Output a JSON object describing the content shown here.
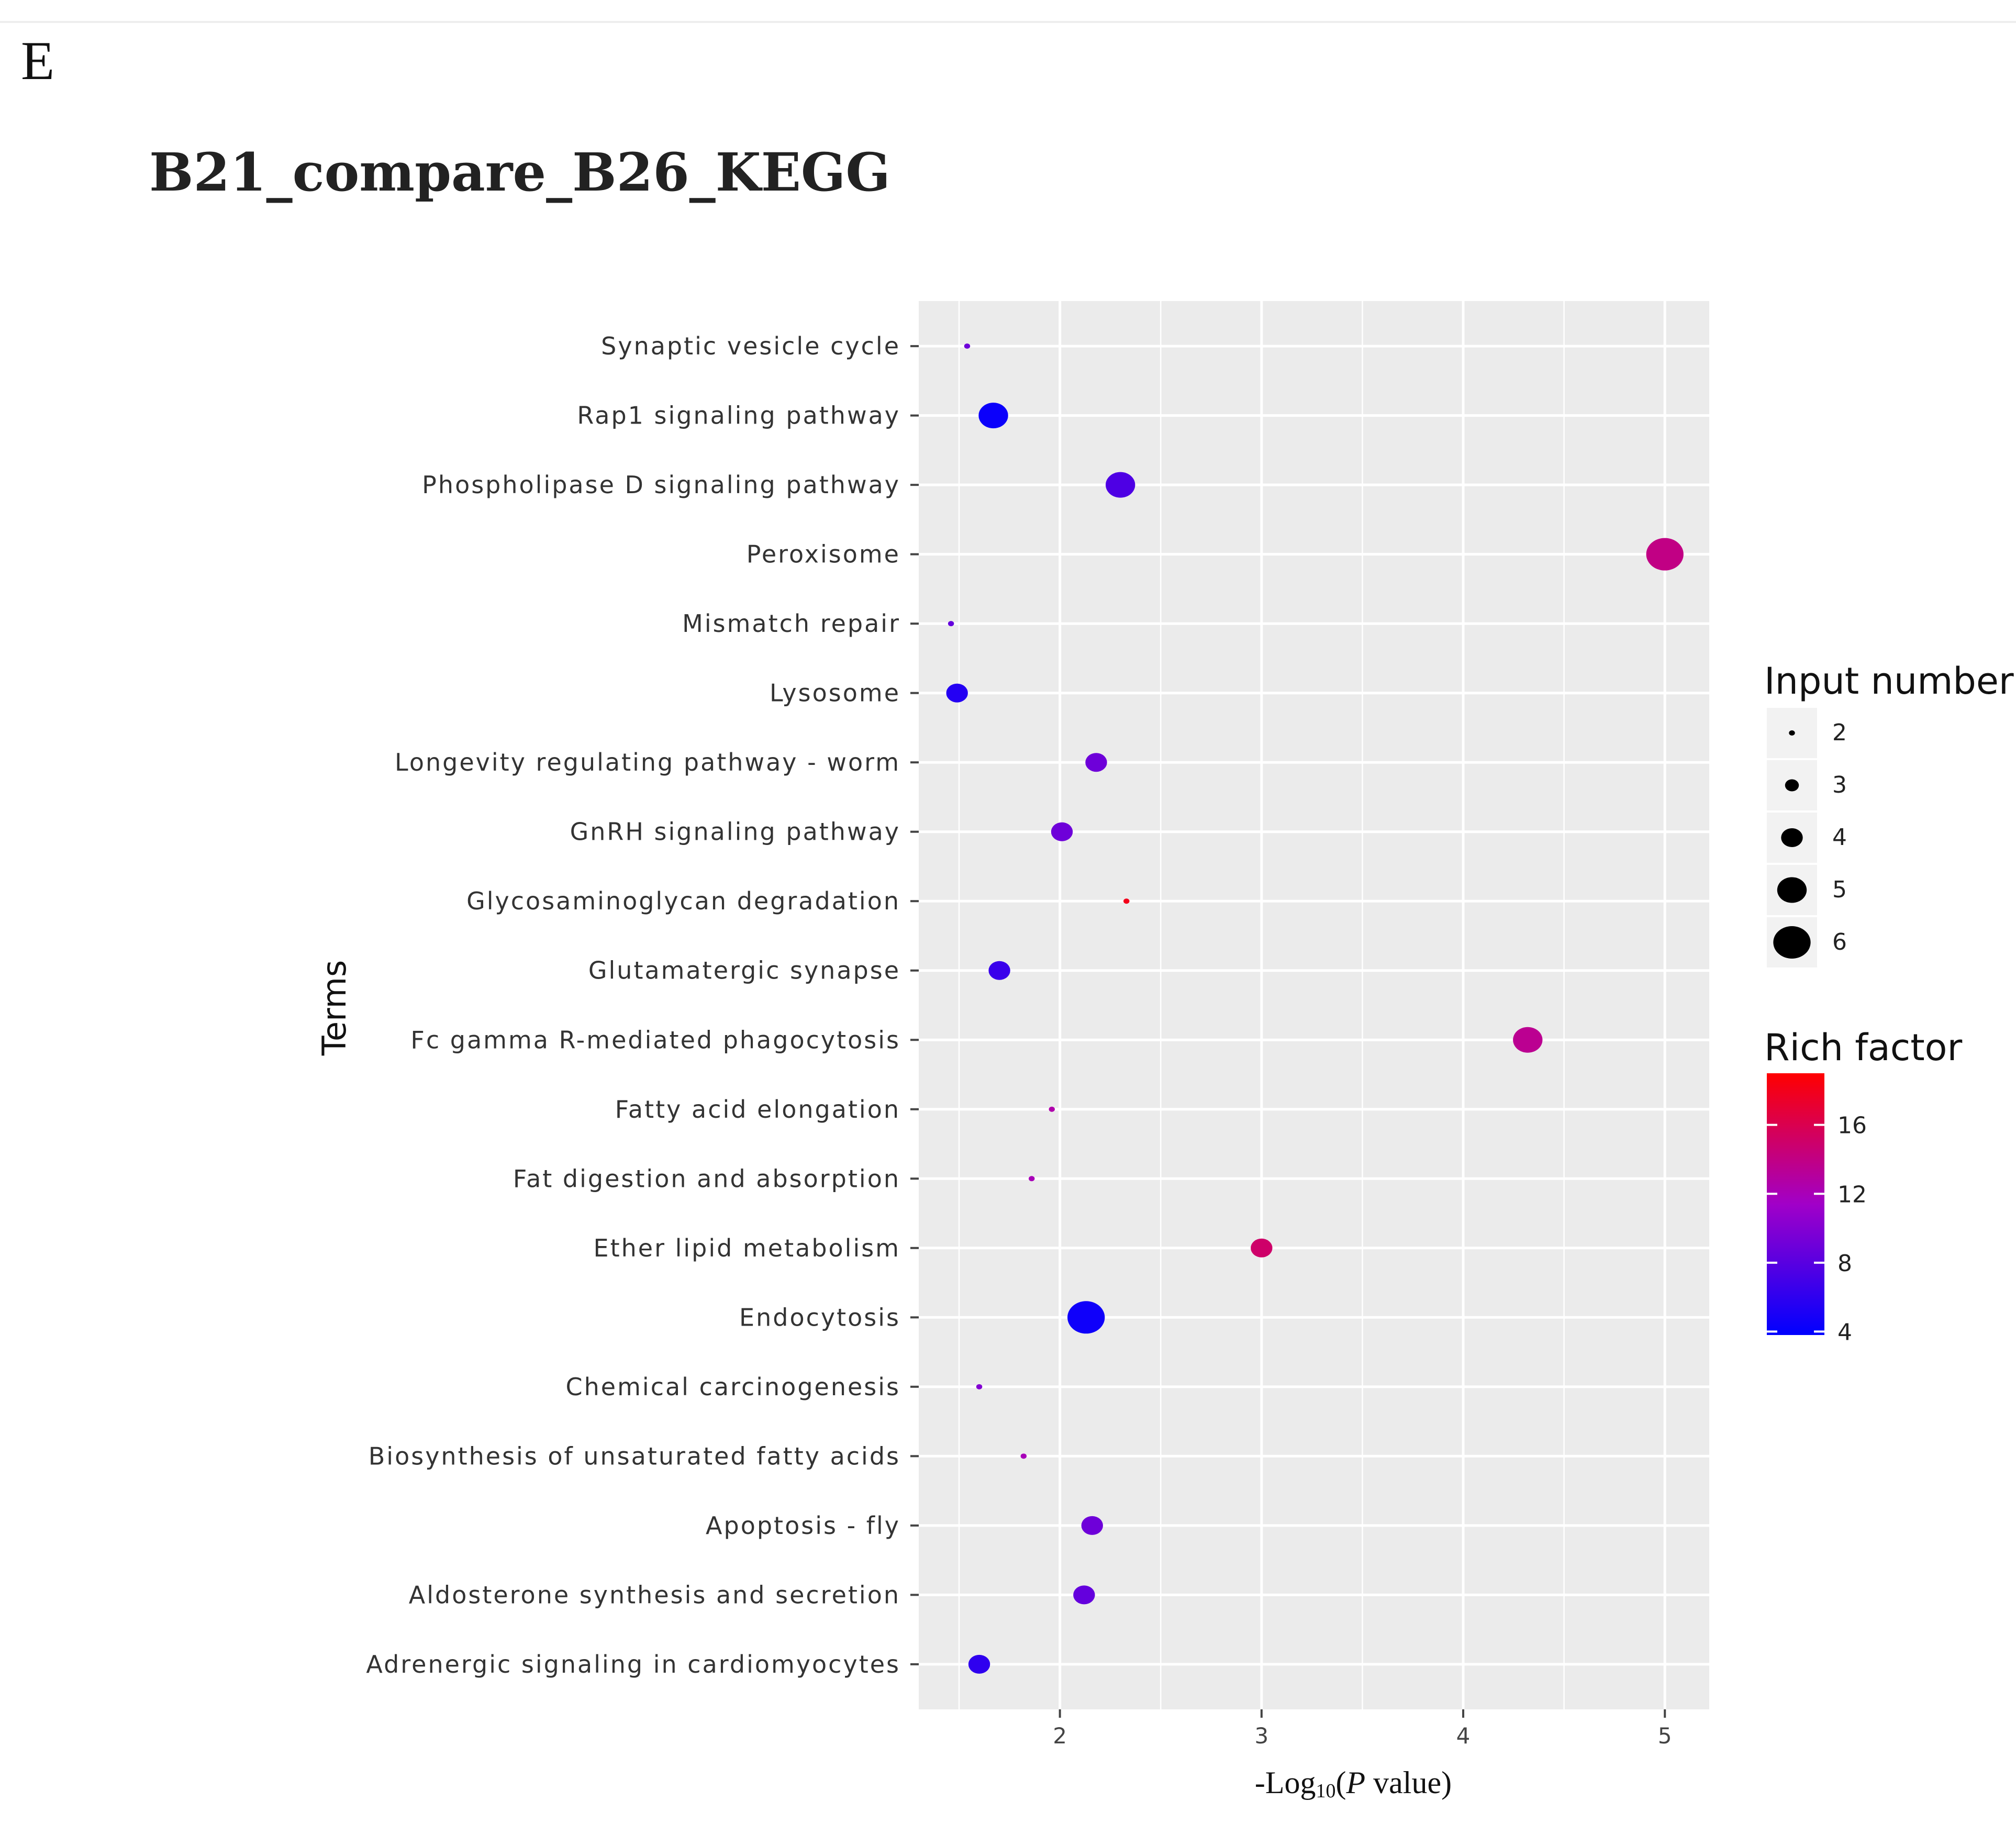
{
  "figure": {
    "panel_label": "E",
    "title": "B21_compare_B26_KEGG"
  },
  "chart_data": {
    "type": "scatter",
    "title": "B21_compare_B26_KEGG",
    "xlabel_parts": [
      "-Log",
      "10",
      "(",
      "P",
      " value)"
    ],
    "ylabel": "Terms",
    "xlim": [
      1.3,
      5.22
    ],
    "xticks": [
      2,
      3,
      4,
      5
    ],
    "terms": [
      "Synaptic vesicle cycle",
      "Rap1 signaling pathway",
      "Phospholipase D signaling pathway",
      "Peroxisome",
      "Mismatch repair",
      "Lysosome",
      "Longevity regulating pathway - worm",
      "GnRH signaling pathway",
      "Glycosaminoglycan degradation",
      "Glutamatergic synapse",
      "Fc gamma R-mediated phagocytosis",
      "Fatty acid elongation",
      "Fat digestion and absorption",
      "Ether lipid metabolism",
      "Endocytosis",
      "Chemical carcinogenesis",
      "Biosynthesis of unsaturated fatty acids",
      "Apoptosis - fly",
      "Aldosterone synthesis and secretion",
      "Adrenergic signaling in cardiomyocytes"
    ],
    "points": [
      {
        "term": "Synaptic vesicle cycle",
        "x": 1.54,
        "input_number": 2,
        "rich_factor": 9
      },
      {
        "term": "Rap1 signaling pathway",
        "x": 1.67,
        "input_number": 5,
        "rich_factor": 4.3
      },
      {
        "term": "Phospholipase D signaling pathway",
        "x": 2.3,
        "input_number": 5,
        "rich_factor": 7.5
      },
      {
        "term": "Peroxisome",
        "x": 5.0,
        "input_number": 6,
        "rich_factor": 14
      },
      {
        "term": "Mismatch repair",
        "x": 1.46,
        "input_number": 2,
        "rich_factor": 8.5
      },
      {
        "term": "Lysosome",
        "x": 1.49,
        "input_number": 4,
        "rich_factor": 5.5
      },
      {
        "term": "Longevity regulating pathway - worm",
        "x": 2.18,
        "input_number": 4,
        "rich_factor": 9
      },
      {
        "term": "GnRH signaling pathway",
        "x": 2.01,
        "input_number": 4,
        "rich_factor": 9
      },
      {
        "term": "Glycosaminoglycan degradation",
        "x": 2.33,
        "input_number": 2,
        "rich_factor": 18
      },
      {
        "term": "Glutamatergic synapse",
        "x": 1.7,
        "input_number": 4,
        "rich_factor": 6.5
      },
      {
        "term": "Fc gamma R-mediated phagocytosis",
        "x": 4.32,
        "input_number": 5,
        "rich_factor": 13.5
      },
      {
        "term": "Fatty acid elongation",
        "x": 1.96,
        "input_number": 2,
        "rich_factor": 12.5
      },
      {
        "term": "Fat digestion and absorption",
        "x": 1.86,
        "input_number": 2,
        "rich_factor": 12
      },
      {
        "term": "Ether lipid metabolism",
        "x": 3.0,
        "input_number": 4,
        "rich_factor": 15
      },
      {
        "term": "Endocytosis",
        "x": 2.13,
        "input_number": 6,
        "rich_factor": 4.5
      },
      {
        "term": "Chemical carcinogenesis",
        "x": 1.6,
        "input_number": 2,
        "rich_factor": 10
      },
      {
        "term": "Biosynthesis of unsaturated fatty acids",
        "x": 1.82,
        "input_number": 2,
        "rich_factor": 12
      },
      {
        "term": "Apoptosis - fly",
        "x": 2.16,
        "input_number": 4,
        "rich_factor": 9
      },
      {
        "term": "Aldosterone synthesis and secretion",
        "x": 2.12,
        "input_number": 4,
        "rich_factor": 8.5
      },
      {
        "term": "Adrenergic signaling in cardiomyocytes",
        "x": 1.6,
        "input_number": 4,
        "rich_factor": 6
      }
    ],
    "size_legend": {
      "title": "Input number",
      "values": [
        2,
        3,
        4,
        5,
        6
      ]
    },
    "color_legend": {
      "title": "Rich factor",
      "ticks": [
        4,
        8,
        12,
        16
      ],
      "range": [
        3.8,
        19
      ],
      "low_color": "#0000ff",
      "high_color": "#ff0000"
    },
    "panel_background": "#ebebeb",
    "grid_color": "#ffffff"
  }
}
